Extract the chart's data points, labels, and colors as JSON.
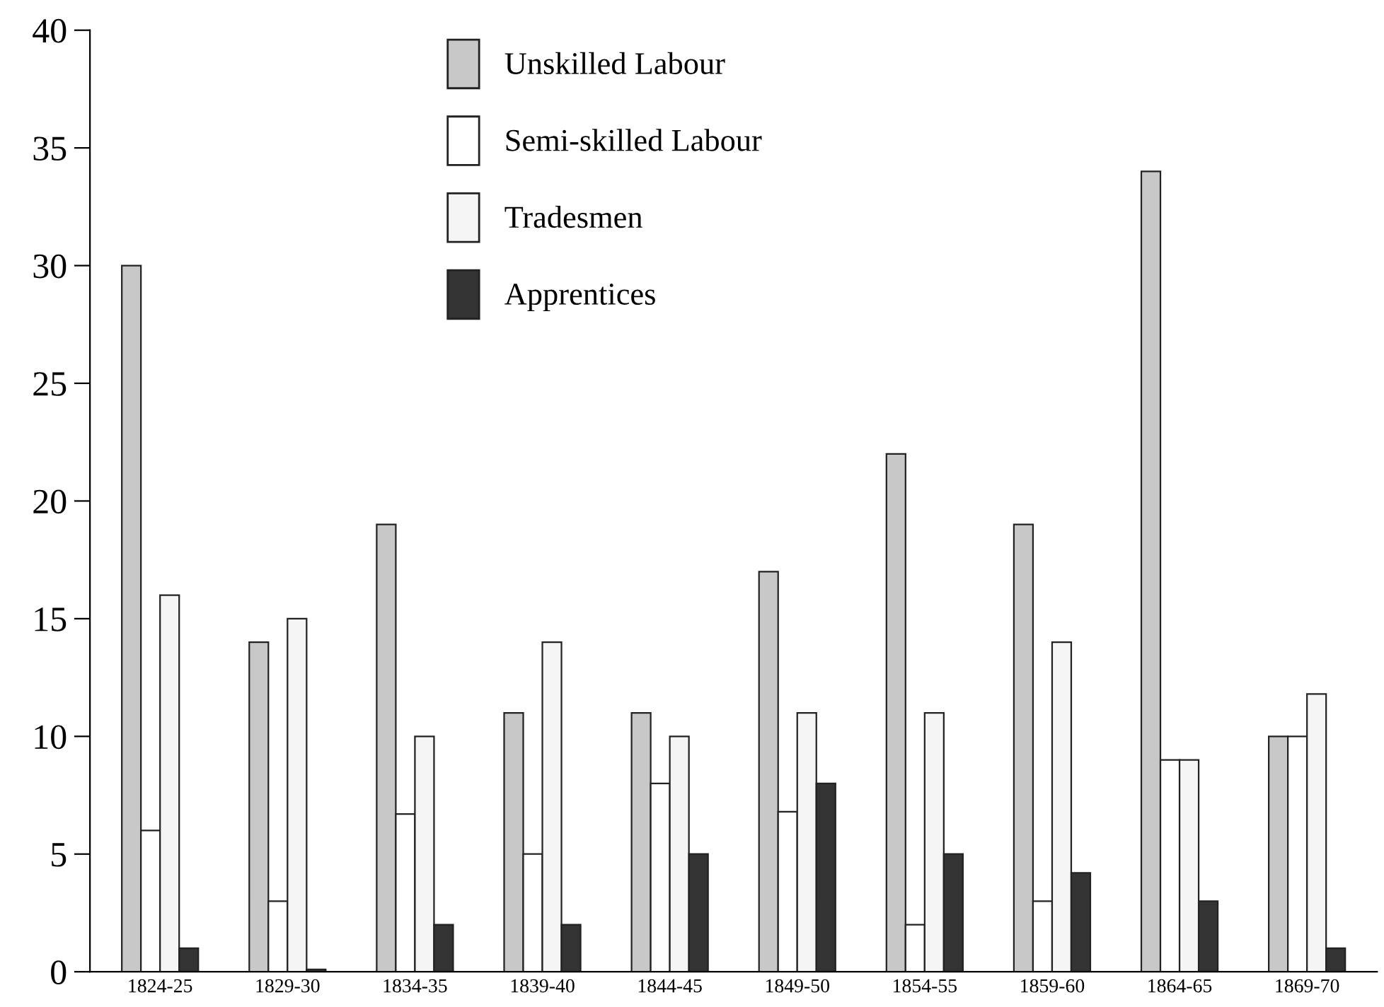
{
  "chart_data": {
    "type": "bar",
    "categories": [
      "1824-25",
      "1829-30",
      "1834-35",
      "1839-40",
      "1844-45",
      "1849-50",
      "1854-55",
      "1859-60",
      "1864-65",
      "1869-70"
    ],
    "series": [
      {
        "name": "Unskilled Labour",
        "color": "#c8c8c8",
        "values": [
          30,
          14,
          19,
          11,
          11,
          17,
          22,
          19,
          34,
          10
        ]
      },
      {
        "name": "Semi-skilled Labour",
        "color": "#ffffff",
        "values": [
          6,
          3,
          6.7,
          5,
          8,
          6.8,
          2,
          3,
          9,
          10
        ]
      },
      {
        "name": "Tradesmen",
        "color": "#f5f5f5",
        "values": [
          16,
          15,
          10,
          14,
          10,
          11,
          11,
          14,
          9,
          11.8
        ]
      },
      {
        "name": "Apprentices",
        "color": "#333333",
        "values": [
          1,
          0.1,
          2,
          2,
          5,
          8,
          5,
          4.2,
          3,
          1
        ]
      }
    ],
    "ylim": [
      0,
      40
    ],
    "yticks": [
      0,
      5,
      10,
      15,
      20,
      25,
      30,
      35,
      40
    ],
    "grid": false,
    "legend": "top",
    "tick_labels": true
  }
}
